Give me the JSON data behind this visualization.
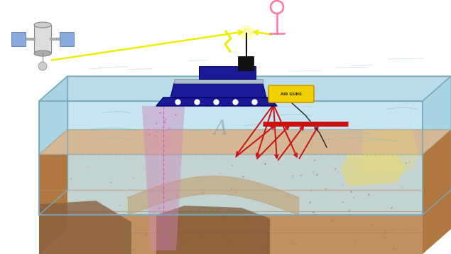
{
  "fig_width": 6.35,
  "fig_height": 3.57,
  "dpi": 100,
  "ocean_top_color": "#b8dcea",
  "ocean_front_color": "#c5e5f0",
  "ocean_right_color": "#9ecfdf",
  "ocean_left_color": "#9ecfdf",
  "seabed_top_color": "#d4b896",
  "seabed_front_color": "#c09060",
  "seabed_side_color": "#b07840",
  "seabed_dark_color": "#a06030",
  "box_edge_color": "#7aaabb",
  "ship_color": "#1a1a99",
  "ship_top_color": "#aabbcc",
  "ship_black": "#111111",
  "air_gun_color": "#f0d000",
  "air_gun_edge": "#cc9900",
  "cable_color": "#222222",
  "pink_cone_color": "#cc88bb",
  "pink_cone_alpha": 0.45,
  "pink_dashed_color": "#cc55aa",
  "red_bar_color": "#cc1111",
  "seismic_color": "#cc1111",
  "yellow_res_color": "#e8d870",
  "yellow_res_alpha": 0.6,
  "sat_color": "#cccccc",
  "sat_panel_color": "#88aadd",
  "beacon_color": "#ff7799",
  "yellow_signal_color": "#eeee00",
  "water_ripple_color": "#88bbcc",
  "letter_A_color": "#8899aa"
}
